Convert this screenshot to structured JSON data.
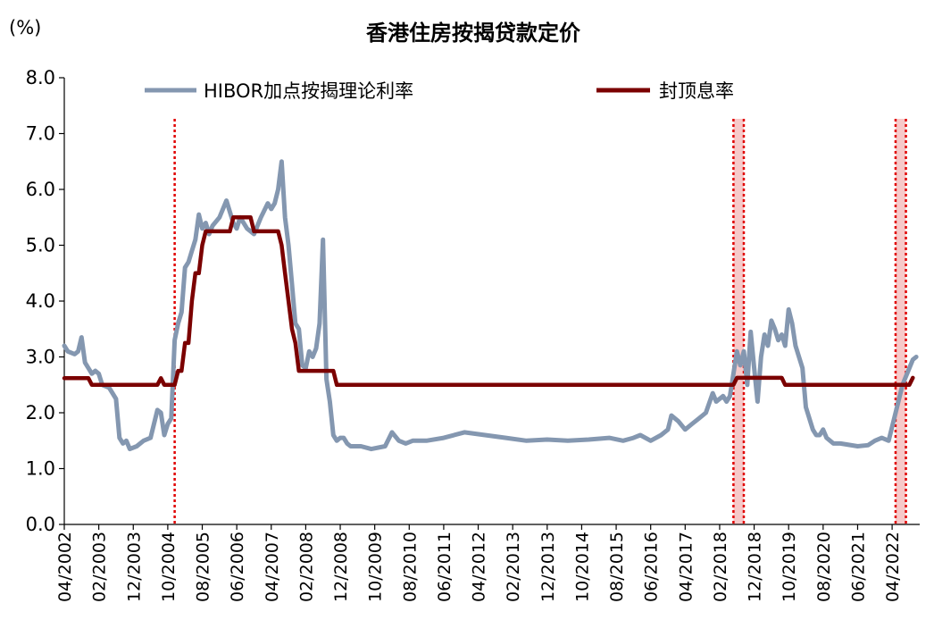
{
  "chart_data": {
    "type": "line",
    "title": "香港住房按揭贷款定价",
    "ylabel": "(%)",
    "xlabel": "",
    "ylim": [
      0,
      8
    ],
    "yticks": [
      "0.0",
      "1.0",
      "2.0",
      "3.0",
      "4.0",
      "5.0",
      "6.0",
      "7.0",
      "8.0"
    ],
    "xlim": [
      "2002-04",
      "2022-12"
    ],
    "xticks": [
      "04/2002",
      "02/2003",
      "12/2003",
      "10/2004",
      "08/2005",
      "06/2006",
      "04/2007",
      "02/2008",
      "12/2008",
      "10/2009",
      "08/2010",
      "06/2011",
      "04/2012",
      "02/2013",
      "12/2013",
      "10/2014",
      "08/2015",
      "06/2016",
      "04/2017",
      "02/2018",
      "12/2018",
      "10/2019",
      "08/2020",
      "06/2021",
      "04/2022"
    ],
    "grid": false,
    "legend_position": "top",
    "series": [
      {
        "name": "HIBOR加点按揭理论利率",
        "color": "#8497b0",
        "points": [
          [
            "2002-04",
            3.2
          ],
          [
            "2002-05",
            3.1
          ],
          [
            "2002-07",
            3.05
          ],
          [
            "2002-08",
            3.1
          ],
          [
            "2002-09",
            3.35
          ],
          [
            "2002-10",
            2.9
          ],
          [
            "2002-11",
            2.8
          ],
          [
            "2002-12",
            2.7
          ],
          [
            "2003-01",
            2.75
          ],
          [
            "2003-02",
            2.7
          ],
          [
            "2003-03",
            2.5
          ],
          [
            "2003-05",
            2.45
          ],
          [
            "2003-07",
            2.25
          ],
          [
            "2003-08",
            1.55
          ],
          [
            "2003-09",
            1.45
          ],
          [
            "2003-10",
            1.5
          ],
          [
            "2003-11",
            1.35
          ],
          [
            "2004-01",
            1.4
          ],
          [
            "2004-03",
            1.5
          ],
          [
            "2004-05",
            1.55
          ],
          [
            "2004-07",
            2.05
          ],
          [
            "2004-08",
            2.0
          ],
          [
            "2004-09",
            1.6
          ],
          [
            "2004-10",
            1.8
          ],
          [
            "2004-11",
            1.9
          ],
          [
            "2004-12",
            3.3
          ],
          [
            "2005-01",
            3.6
          ],
          [
            "2005-02",
            3.8
          ],
          [
            "2005-03",
            4.6
          ],
          [
            "2005-04",
            4.7
          ],
          [
            "2005-05",
            4.9
          ],
          [
            "2005-06",
            5.1
          ],
          [
            "2005-07",
            5.55
          ],
          [
            "2005-08",
            5.3
          ],
          [
            "2005-09",
            5.4
          ],
          [
            "2005-10",
            5.2
          ],
          [
            "2005-11",
            5.35
          ],
          [
            "2006-01",
            5.5
          ],
          [
            "2006-03",
            5.8
          ],
          [
            "2006-04",
            5.6
          ],
          [
            "2006-05",
            5.4
          ],
          [
            "2006-06",
            5.3
          ],
          [
            "2006-07",
            5.5
          ],
          [
            "2006-09",
            5.3
          ],
          [
            "2006-11",
            5.2
          ],
          [
            "2007-01",
            5.5
          ],
          [
            "2007-03",
            5.75
          ],
          [
            "2007-04",
            5.65
          ],
          [
            "2007-05",
            5.75
          ],
          [
            "2007-06",
            6.0
          ],
          [
            "2007-07",
            6.5
          ],
          [
            "2007-08",
            5.5
          ],
          [
            "2007-09",
            5.0
          ],
          [
            "2007-10",
            4.3
          ],
          [
            "2007-11",
            3.6
          ],
          [
            "2007-12",
            3.5
          ],
          [
            "2008-01",
            2.85
          ],
          [
            "2008-02",
            2.8
          ],
          [
            "2008-03",
            3.1
          ],
          [
            "2008-04",
            3.0
          ],
          [
            "2008-05",
            3.15
          ],
          [
            "2008-06",
            3.6
          ],
          [
            "2008-07",
            5.1
          ],
          [
            "2008-08",
            2.6
          ],
          [
            "2008-09",
            2.2
          ],
          [
            "2008-10",
            1.6
          ],
          [
            "2008-11",
            1.5
          ],
          [
            "2008-12",
            1.55
          ],
          [
            "2009-01",
            1.55
          ],
          [
            "2009-02",
            1.45
          ],
          [
            "2009-03",
            1.4
          ],
          [
            "2009-06",
            1.4
          ],
          [
            "2009-09",
            1.35
          ],
          [
            "2010-01",
            1.4
          ],
          [
            "2010-03",
            1.65
          ],
          [
            "2010-05",
            1.5
          ],
          [
            "2010-07",
            1.45
          ],
          [
            "2010-09",
            1.5
          ],
          [
            "2011-01",
            1.5
          ],
          [
            "2011-06",
            1.55
          ],
          [
            "2011-09",
            1.6
          ],
          [
            "2011-12",
            1.65
          ],
          [
            "2012-06",
            1.6
          ],
          [
            "2012-12",
            1.55
          ],
          [
            "2013-06",
            1.5
          ],
          [
            "2013-12",
            1.52
          ],
          [
            "2014-06",
            1.5
          ],
          [
            "2014-12",
            1.52
          ],
          [
            "2015-06",
            1.55
          ],
          [
            "2015-10",
            1.5
          ],
          [
            "2016-01",
            1.55
          ],
          [
            "2016-03",
            1.6
          ],
          [
            "2016-06",
            1.5
          ],
          [
            "2016-09",
            1.6
          ],
          [
            "2016-11",
            1.7
          ],
          [
            "2016-12",
            1.95
          ],
          [
            "2017-02",
            1.85
          ],
          [
            "2017-04",
            1.7
          ],
          [
            "2017-06",
            1.8
          ],
          [
            "2017-08",
            1.9
          ],
          [
            "2017-10",
            2.0
          ],
          [
            "2017-12",
            2.35
          ],
          [
            "2018-01",
            2.2
          ],
          [
            "2018-03",
            2.3
          ],
          [
            "2018-04",
            2.2
          ],
          [
            "2018-05",
            2.3
          ],
          [
            "2018-06",
            2.7
          ],
          [
            "2018-07",
            3.1
          ],
          [
            "2018-08",
            2.85
          ],
          [
            "2018-09",
            3.1
          ],
          [
            "2018-10",
            2.5
          ],
          [
            "2018-11",
            3.45
          ],
          [
            "2018-12",
            2.8
          ],
          [
            "2019-01",
            2.2
          ],
          [
            "2019-02",
            3.0
          ],
          [
            "2019-03",
            3.4
          ],
          [
            "2019-04",
            3.2
          ],
          [
            "2019-05",
            3.65
          ],
          [
            "2019-06",
            3.5
          ],
          [
            "2019-07",
            3.3
          ],
          [
            "2019-08",
            3.4
          ],
          [
            "2019-09",
            3.2
          ],
          [
            "2019-10",
            3.85
          ],
          [
            "2019-11",
            3.6
          ],
          [
            "2019-12",
            3.2
          ],
          [
            "2020-01",
            3.0
          ],
          [
            "2020-02",
            2.8
          ],
          [
            "2020-03",
            2.1
          ],
          [
            "2020-04",
            1.9
          ],
          [
            "2020-05",
            1.7
          ],
          [
            "2020-06",
            1.6
          ],
          [
            "2020-07",
            1.6
          ],
          [
            "2020-08",
            1.7
          ],
          [
            "2020-09",
            1.55
          ],
          [
            "2020-11",
            1.45
          ],
          [
            "2021-01",
            1.45
          ],
          [
            "2021-06",
            1.4
          ],
          [
            "2021-09",
            1.42
          ],
          [
            "2021-11",
            1.5
          ],
          [
            "2022-01",
            1.55
          ],
          [
            "2022-03",
            1.5
          ],
          [
            "2022-05",
            2.0
          ],
          [
            "2022-07",
            2.5
          ],
          [
            "2022-09",
            2.8
          ],
          [
            "2022-10",
            2.95
          ],
          [
            "2022-11",
            3.0
          ]
        ]
      },
      {
        "name": "封顶息率",
        "color": "#7b0000",
        "points": [
          [
            "2002-04",
            2.62
          ],
          [
            "2002-11",
            2.62
          ],
          [
            "2002-12",
            2.5
          ],
          [
            "2004-07",
            2.5
          ],
          [
            "2004-08",
            2.62
          ],
          [
            "2004-09",
            2.5
          ],
          [
            "2004-12",
            2.5
          ],
          [
            "2005-01",
            2.75
          ],
          [
            "2005-02",
            2.75
          ],
          [
            "2005-03",
            3.25
          ],
          [
            "2005-04",
            3.25
          ],
          [
            "2005-05",
            4.0
          ],
          [
            "2005-06",
            4.5
          ],
          [
            "2005-07",
            4.5
          ],
          [
            "2005-08",
            5.0
          ],
          [
            "2005-09",
            5.25
          ],
          [
            "2006-04",
            5.25
          ],
          [
            "2006-05",
            5.5
          ],
          [
            "2006-10",
            5.5
          ],
          [
            "2006-11",
            5.25
          ],
          [
            "2007-06",
            5.25
          ],
          [
            "2007-07",
            5.0
          ],
          [
            "2007-08",
            4.5
          ],
          [
            "2007-09",
            4.0
          ],
          [
            "2007-10",
            3.5
          ],
          [
            "2007-11",
            3.25
          ],
          [
            "2007-12",
            2.75
          ],
          [
            "2008-10",
            2.75
          ],
          [
            "2008-11",
            2.5
          ],
          [
            "2018-06",
            2.5
          ],
          [
            "2018-07",
            2.625
          ],
          [
            "2019-08",
            2.625
          ],
          [
            "2019-09",
            2.5
          ],
          [
            "2022-09",
            2.5
          ],
          [
            "2022-10",
            2.625
          ]
        ]
      }
    ],
    "annotations": {
      "vertical_lines": [
        "2004-12"
      ],
      "shaded_periods": [
        [
          "2018-06",
          "2018-09"
        ],
        [
          "2022-05",
          "2022-08"
        ]
      ]
    }
  }
}
